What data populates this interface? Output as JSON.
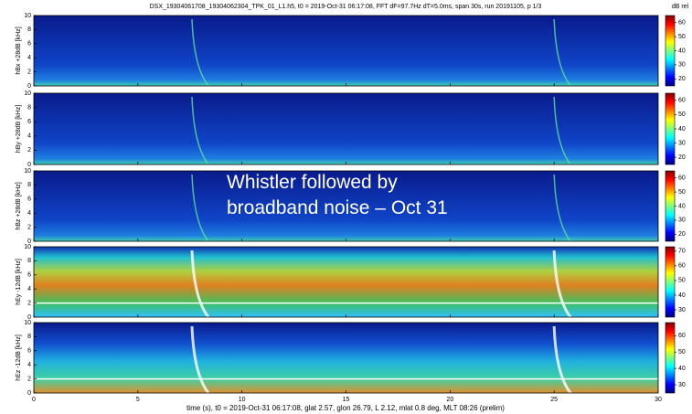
{
  "figure": {
    "title": "DSX_19304061708_19304062304_TPK_01_L1.h5, t0 = 2019-Oct-31 06:17:08, FFT dF=97.7Hz dT=5.0ms, span 30s, run 20191105, p 1/3",
    "x_label": "time (s), t0 = 2019-Oct-31 06:17:08, glat 2.57, glon 26.79, L 2.12, mlat 0.8 deg, MLT 08:26 (prelim)",
    "colorbar_label": "dB rel",
    "annotation": [
      "Whistler followed by",
      "broadband noise – Oct 31"
    ]
  },
  "chart_data": [
    {
      "type": "heatmap",
      "y_label": "hBx +28dB [kHz]",
      "xlim": [
        0,
        30
      ],
      "xticks": [
        0,
        5,
        10,
        15,
        20,
        25,
        30
      ],
      "ylim": [
        0,
        10
      ],
      "yticks": [
        0,
        2,
        4,
        6,
        8,
        10
      ],
      "clim": [
        15,
        65
      ],
      "cticks": [
        20,
        30,
        40,
        50,
        60
      ]
    },
    {
      "type": "heatmap",
      "y_label": "hBy +28dB [kHz]",
      "xlim": [
        0,
        30
      ],
      "xticks": [
        0,
        5,
        10,
        15,
        20,
        25,
        30
      ],
      "ylim": [
        0,
        10
      ],
      "yticks": [
        0,
        2,
        4,
        6,
        8,
        10
      ],
      "clim": [
        15,
        65
      ],
      "cticks": [
        20,
        30,
        40,
        50,
        60
      ]
    },
    {
      "type": "heatmap",
      "y_label": "hBz +28dB [kHz]",
      "xlim": [
        0,
        30
      ],
      "xticks": [
        0,
        5,
        10,
        15,
        20,
        25,
        30
      ],
      "ylim": [
        0,
        10
      ],
      "yticks": [
        0,
        2,
        4,
        6,
        8,
        10
      ],
      "clim": [
        15,
        65
      ],
      "cticks": [
        20,
        30,
        40,
        50,
        60
      ]
    },
    {
      "type": "heatmap",
      "y_label": "hEy -12dB [kHz]",
      "xlim": [
        0,
        30
      ],
      "xticks": [
        0,
        5,
        10,
        15,
        20,
        25,
        30
      ],
      "ylim": [
        0,
        10
      ],
      "yticks": [
        0,
        2,
        4,
        6,
        8,
        10
      ],
      "clim": [
        25,
        73
      ],
      "cticks": [
        30,
        40,
        50,
        60,
        70
      ]
    },
    {
      "type": "heatmap",
      "y_label": "hEz -12dB [kHz]",
      "xlim": [
        0,
        30
      ],
      "xticks": [
        0,
        5,
        10,
        15,
        20,
        25,
        30
      ],
      "ylim": [
        0,
        10
      ],
      "yticks": [
        0,
        2,
        4,
        6,
        8,
        10
      ],
      "clim": [
        25,
        68
      ],
      "cticks": [
        30,
        40,
        50,
        60
      ]
    }
  ]
}
